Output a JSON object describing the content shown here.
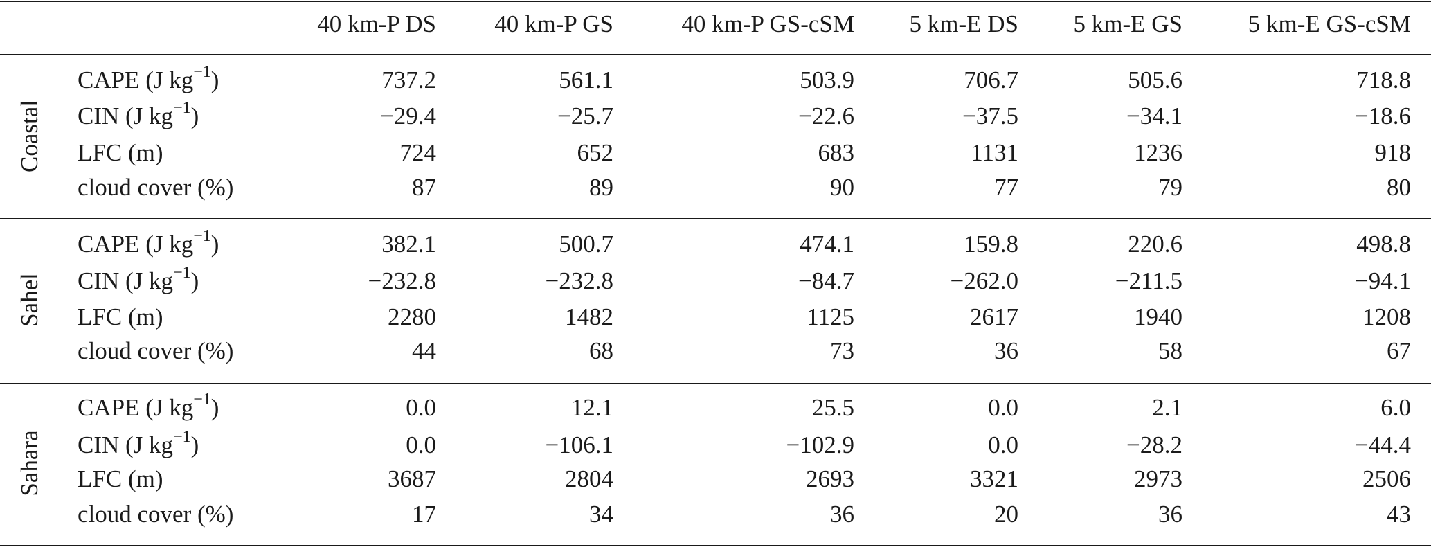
{
  "table": {
    "header": [
      "40 km-P DS",
      "40 km-P GS",
      "40 km-P GS-cSM",
      "5 km-E DS",
      "5 km-E GS",
      "5 km-E GS-cSM"
    ],
    "groups": [
      {
        "label": "Coastal",
        "rows": [
          {
            "label": {
              "base": "CAPE (J kg",
              "sup": "−1",
              "tail": ")"
            },
            "values": [
              "737.2",
              "561.1",
              "503.9",
              "706.7",
              "505.6",
              "718.8"
            ]
          },
          {
            "label": {
              "base": "CIN (J kg",
              "sup": "−1",
              "tail": ")"
            },
            "values": [
              "−29.4",
              "−25.7",
              "−22.6",
              "−37.5",
              "−34.1",
              "−18.6"
            ]
          },
          {
            "label": "LFC (m)",
            "values": [
              "724",
              "652",
              "683",
              "1131",
              "1236",
              "918"
            ]
          },
          {
            "label": "cloud cover (%)",
            "values": [
              "87",
              "89",
              "90",
              "77",
              "79",
              "80"
            ]
          }
        ]
      },
      {
        "label": "Sahel",
        "rows": [
          {
            "label": {
              "base": "CAPE (J kg",
              "sup": "−1",
              "tail": ")"
            },
            "values": [
              "382.1",
              "500.7",
              "474.1",
              "159.8",
              "220.6",
              "498.8"
            ]
          },
          {
            "label": {
              "base": "CIN (J kg",
              "sup": "−1",
              "tail": ")"
            },
            "values": [
              "−232.8",
              "−232.8",
              "−84.7",
              "−262.0",
              "−211.5",
              "−94.1"
            ]
          },
          {
            "label": "LFC (m)",
            "values": [
              "2280",
              "1482",
              "1125",
              "2617",
              "1940",
              "1208"
            ]
          },
          {
            "label": "cloud cover (%)",
            "values": [
              "44",
              "68",
              "73",
              "36",
              "58",
              "67"
            ]
          }
        ]
      },
      {
        "label": "Sahara",
        "rows": [
          {
            "label": {
              "base": "CAPE (J kg",
              "sup": "−1",
              "tail": ")"
            },
            "values": [
              "0.0",
              "12.1",
              "25.5",
              "0.0",
              "2.1",
              "6.0"
            ]
          },
          {
            "label": {
              "base": "CIN (J kg",
              "sup": "−1",
              "tail": ")"
            },
            "values": [
              "0.0",
              "−106.1",
              "−102.9",
              "0.0",
              "−28.2",
              "−44.4"
            ]
          },
          {
            "label": "LFC (m)",
            "values": [
              "3687",
              "2804",
              "2693",
              "3321",
              "2973",
              "2506"
            ]
          },
          {
            "label": "cloud cover (%)",
            "values": [
              "17",
              "34",
              "36",
              "20",
              "36",
              "43"
            ]
          }
        ]
      }
    ]
  }
}
